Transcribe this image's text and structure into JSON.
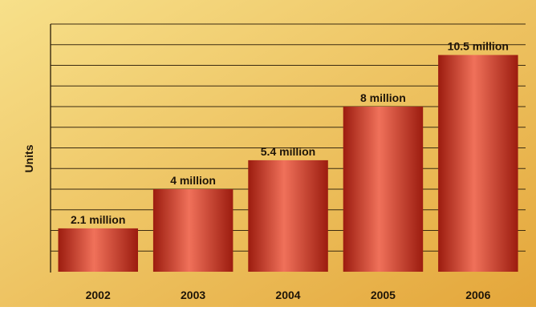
{
  "chart_data": {
    "type": "bar",
    "categories": [
      "2002",
      "2003",
      "2004",
      "2005",
      "2006"
    ],
    "values": [
      2.1,
      4,
      5.4,
      8,
      10.5
    ],
    "data_labels": [
      "2.1 million",
      "4 million",
      "5.4 million",
      "8 million",
      "10.5 million"
    ],
    "ylabel": "Units",
    "ylim": [
      0,
      12
    ],
    "grid": true,
    "colors": {
      "background_light": "#f7e08a",
      "background_dark": "#e4a63a",
      "bar_dark": "#9c1c0f",
      "bar_light": "#f0715a",
      "grid": "#3a2a10",
      "text": "#1e1408"
    }
  }
}
